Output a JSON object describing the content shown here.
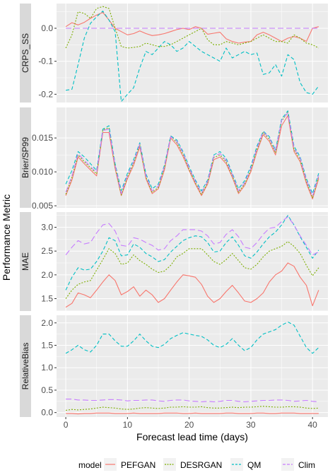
{
  "ylabel": "Performance Metric",
  "xlabel": "Forecast lead time (days)",
  "legend": {
    "title": "model",
    "items": [
      {
        "label": "PEFGAN",
        "color": "#F8766D",
        "dash": "solid"
      },
      {
        "label": "DESRGAN",
        "color": "#7CAE00",
        "dash": "dotted"
      },
      {
        "label": "QM",
        "color": "#00BFC4",
        "dash": "dashed"
      },
      {
        "label": "Clim",
        "color": "#C77CFF",
        "dash": "longdash"
      }
    ]
  },
  "colors": {
    "panel_bg": "#EBEBEB",
    "grid": "#FFFFFF",
    "strip_bg": "#D9D9D9",
    "PEFGAN": "#F8766D",
    "DESRGAN": "#7CAE00",
    "QM": "#00BFC4",
    "Clim": "#C77CFF"
  },
  "chart_data": {
    "type": "line",
    "x": [
      0,
      1,
      2,
      3,
      4,
      5,
      6,
      7,
      8,
      9,
      10,
      11,
      12,
      13,
      14,
      15,
      16,
      17,
      18,
      19,
      20,
      21,
      22,
      23,
      24,
      25,
      26,
      27,
      28,
      29,
      30,
      31,
      32,
      33,
      34,
      35,
      36,
      37,
      38,
      39,
      40,
      41
    ],
    "xticks": [
      0,
      10,
      20,
      30,
      40
    ],
    "xticklabels": [
      "0",
      "10",
      "20",
      "30",
      "40"
    ],
    "xlim": [
      -1.5,
      42.5
    ],
    "grid": true,
    "legend_position": "bottom",
    "panels": [
      {
        "strip": "CRPS_SS",
        "ylim": [
          -0.225,
          0.075
        ],
        "yticks": [
          0.0,
          -0.1,
          -0.2
        ],
        "yticklabels": [
          "0.0",
          "-0.1",
          "-0.2"
        ],
        "series": [
          {
            "name": "PEFGAN",
            "values": [
              0.005,
              0.017,
              0.01,
              0.018,
              0.03,
              0.04,
              0.048,
              0.025,
              0.0,
              -0.01,
              -0.02,
              -0.016,
              -0.008,
              -0.016,
              -0.022,
              -0.02,
              -0.016,
              -0.01,
              -0.004,
              0.0,
              -0.004,
              0.005,
              0.0,
              -0.018,
              -0.015,
              -0.012,
              -0.032,
              -0.04,
              -0.045,
              -0.042,
              -0.04,
              -0.02,
              -0.012,
              -0.02,
              -0.03,
              -0.04,
              -0.03,
              -0.025,
              -0.03,
              -0.04,
              0.0,
              0.005
            ]
          },
          {
            "name": "DESRGAN",
            "values": [
              -0.06,
              -0.02,
              0.05,
              0.045,
              0.03,
              0.06,
              0.066,
              0.06,
              0.0,
              -0.055,
              -0.06,
              -0.058,
              -0.055,
              -0.045,
              -0.05,
              -0.055,
              -0.055,
              -0.05,
              -0.04,
              -0.03,
              -0.02,
              -0.01,
              0.0,
              -0.035,
              -0.05,
              -0.05,
              -0.04,
              -0.045,
              -0.05,
              -0.045,
              -0.04,
              -0.03,
              -0.02,
              -0.03,
              -0.04,
              -0.04,
              -0.045,
              -0.02,
              -0.03,
              -0.045,
              -0.05,
              -0.06
            ]
          },
          {
            "name": "QM",
            "values": [
              -0.188,
              -0.185,
              -0.11,
              -0.03,
              0.015,
              0.035,
              0.052,
              0.025,
              -0.01,
              -0.222,
              -0.2,
              -0.18,
              -0.12,
              -0.07,
              -0.08,
              -0.06,
              -0.04,
              -0.05,
              -0.07,
              -0.06,
              -0.04,
              -0.055,
              -0.07,
              -0.08,
              -0.09,
              -0.1,
              -0.06,
              -0.09,
              -0.08,
              -0.07,
              -0.08,
              -0.075,
              -0.14,
              -0.135,
              -0.11,
              -0.145,
              -0.08,
              -0.095,
              -0.165,
              -0.195,
              -0.2,
              -0.175
            ]
          },
          {
            "name": "Clim",
            "values": [
              0,
              0,
              0,
              0,
              0,
              0,
              0,
              0,
              0,
              0,
              0,
              0,
              0,
              0,
              0,
              0,
              0,
              0,
              0,
              0,
              0,
              0,
              0,
              0,
              0,
              0,
              0,
              0,
              0,
              0,
              0,
              0,
              0,
              0,
              0,
              0,
              0,
              0,
              0,
              0,
              0,
              0
            ]
          }
        ]
      },
      {
        "strip": "Brier/SP99",
        "ylim": [
          0.0047,
          0.0195
        ],
        "yticks": [
          0.005,
          0.01,
          0.015
        ],
        "yticklabels": [
          "0.005",
          "0.010",
          "0.015"
        ],
        "series": [
          {
            "name": "PEFGAN",
            "values": [
              0.0065,
              0.0088,
              0.0122,
              0.0112,
              0.0103,
              0.0094,
              0.0158,
              0.0158,
              0.0105,
              0.0065,
              0.009,
              0.011,
              0.0137,
              0.009,
              0.0068,
              0.0075,
              0.0103,
              0.015,
              0.014,
              0.0123,
              0.0102,
              0.0082,
              0.0065,
              0.0082,
              0.0118,
              0.0122,
              0.0112,
              0.0092,
              0.0068,
              0.008,
              0.01,
              0.013,
              0.0155,
              0.0145,
              0.0125,
              0.0168,
              0.0183,
              0.013,
              0.0115,
              0.0083,
              0.006,
              0.009
            ]
          },
          {
            "name": "DESRGAN",
            "values": [
              0.0067,
              0.0092,
              0.0125,
              0.0115,
              0.0106,
              0.0097,
              0.0162,
              0.0165,
              0.0108,
              0.0066,
              0.0093,
              0.0113,
              0.014,
              0.0092,
              0.007,
              0.0077,
              0.0106,
              0.0153,
              0.0143,
              0.0126,
              0.0104,
              0.0084,
              0.0067,
              0.0084,
              0.0121,
              0.0125,
              0.0115,
              0.0094,
              0.007,
              0.0082,
              0.0103,
              0.0133,
              0.0158,
              0.0148,
              0.0128,
              0.0175,
              0.0188,
              0.0133,
              0.0118,
              0.0086,
              0.0062,
              0.0093
            ]
          },
          {
            "name": "QM",
            "values": [
              0.0082,
              0.0102,
              0.013,
              0.0122,
              0.0112,
              0.0102,
              0.0163,
              0.0168,
              0.0112,
              0.0072,
              0.0098,
              0.0118,
              0.0143,
              0.0097,
              0.0075,
              0.0082,
              0.011,
              0.0153,
              0.0147,
              0.013,
              0.0108,
              0.0088,
              0.0072,
              0.0088,
              0.0125,
              0.013,
              0.012,
              0.0098,
              0.0075,
              0.0087,
              0.0108,
              0.0138,
              0.016,
              0.0152,
              0.0132,
              0.0178,
              0.019,
              0.0138,
              0.0122,
              0.009,
              0.0068,
              0.0098
            ]
          },
          {
            "name": "Clim",
            "values": [
              0.007,
              0.0094,
              0.0127,
              0.0117,
              0.0108,
              0.0099,
              0.0161,
              0.0163,
              0.011,
              0.0068,
              0.0095,
              0.0115,
              0.0141,
              0.0094,
              0.0072,
              0.0079,
              0.0108,
              0.0152,
              0.0145,
              0.0128,
              0.0106,
              0.0086,
              0.0069,
              0.0086,
              0.0123,
              0.0127,
              0.0117,
              0.0096,
              0.0072,
              0.0084,
              0.0105,
              0.0135,
              0.0159,
              0.015,
              0.013,
              0.0176,
              0.0187,
              0.0135,
              0.012,
              0.0088,
              0.0064,
              0.0095
            ]
          }
        ]
      },
      {
        "strip": "MAE",
        "ylim": [
          1.24,
          3.32
        ],
        "yticks": [
          1.5,
          2.0,
          2.5,
          3.0
        ],
        "yticklabels": [
          "1.5",
          "2.0",
          "2.5",
          "3.0"
        ],
        "series": [
          {
            "name": "PEFGAN",
            "values": [
              1.32,
              1.4,
              1.62,
              1.58,
              1.52,
              1.68,
              1.85,
              2.0,
              1.88,
              1.58,
              1.65,
              1.75,
              1.55,
              1.68,
              1.58,
              1.42,
              1.5,
              1.68,
              1.85,
              2.0,
              1.98,
              1.95,
              1.8,
              1.55,
              1.42,
              1.5,
              1.65,
              1.78,
              1.62,
              1.45,
              1.42,
              1.5,
              1.62,
              1.85,
              2.0,
              2.08,
              2.25,
              2.18,
              1.95,
              1.78,
              1.35,
              1.68
            ]
          },
          {
            "name": "DESRGAN",
            "values": [
              1.5,
              1.68,
              1.8,
              1.85,
              1.88,
              2.1,
              2.32,
              2.55,
              2.45,
              2.22,
              2.25,
              2.42,
              2.3,
              2.22,
              2.12,
              2.05,
              2.08,
              2.2,
              2.38,
              2.45,
              2.55,
              2.55,
              2.55,
              2.42,
              2.28,
              2.22,
              2.32,
              2.45,
              2.3,
              2.15,
              2.12,
              2.22,
              2.38,
              2.5,
              2.55,
              2.6,
              2.7,
              2.6,
              2.45,
              2.2,
              1.98,
              2.15
            ]
          },
          {
            "name": "QM",
            "values": [
              1.68,
              1.95,
              2.15,
              2.1,
              2.12,
              2.28,
              2.5,
              2.78,
              2.72,
              2.4,
              2.42,
              2.65,
              2.58,
              2.45,
              2.38,
              2.28,
              2.32,
              2.48,
              2.6,
              2.72,
              2.78,
              2.82,
              2.8,
              2.68,
              2.48,
              2.5,
              2.68,
              2.8,
              2.62,
              2.4,
              2.35,
              2.48,
              2.65,
              2.8,
              2.9,
              3.05,
              3.25,
              3.05,
              2.8,
              2.58,
              2.35,
              2.52
            ]
          },
          {
            "name": "Clim",
            "values": [
              2.42,
              2.58,
              2.72,
              2.65,
              2.68,
              2.88,
              3.05,
              3.08,
              2.92,
              2.62,
              2.6,
              2.78,
              2.75,
              2.68,
              2.62,
              2.52,
              2.55,
              2.72,
              2.82,
              2.95,
              2.95,
              2.95,
              2.92,
              2.82,
              2.65,
              2.68,
              2.85,
              2.95,
              2.8,
              2.58,
              2.55,
              2.68,
              2.85,
              2.98,
              3.0,
              3.12,
              3.22,
              3.05,
              2.82,
              2.62,
              2.42,
              2.48
            ]
          }
        ]
      },
      {
        "strip": "RelativeBias",
        "ylim": [
          -0.1,
          2.17
        ],
        "yticks": [
          0.0,
          0.5,
          1.0,
          1.5,
          2.0
        ],
        "yticklabels": [
          "0.0",
          "0.5",
          "1.0",
          "1.5",
          "2.0"
        ],
        "series": [
          {
            "name": "PEFGAN",
            "values": [
              -0.02,
              -0.02,
              -0.03,
              -0.02,
              -0.02,
              -0.01,
              -0.01,
              -0.01,
              -0.02,
              -0.02,
              -0.02,
              -0.01,
              -0.02,
              -0.02,
              -0.02,
              -0.02,
              -0.01,
              -0.01,
              -0.01,
              -0.02,
              -0.02,
              -0.01,
              -0.02,
              -0.02,
              -0.02,
              -0.02,
              -0.01,
              -0.01,
              -0.02,
              -0.02,
              -0.02,
              -0.01,
              -0.01,
              -0.02,
              -0.02,
              -0.01,
              -0.01,
              -0.01,
              -0.02,
              -0.02,
              -0.02,
              -0.02
            ]
          },
          {
            "name": "DESRGAN",
            "values": [
              0.05,
              0.07,
              0.06,
              0.07,
              0.08,
              0.1,
              0.12,
              0.11,
              0.1,
              0.08,
              0.07,
              0.08,
              0.1,
              0.11,
              0.1,
              0.09,
              0.1,
              0.12,
              0.12,
              0.13,
              0.12,
              0.12,
              0.13,
              0.11,
              0.1,
              0.1,
              0.11,
              0.12,
              0.11,
              0.12,
              0.12,
              0.13,
              0.14,
              0.13,
              0.12,
              0.12,
              0.13,
              0.13,
              0.12,
              0.1,
              0.09,
              0.1
            ]
          },
          {
            "name": "QM",
            "values": [
              1.32,
              1.4,
              1.5,
              1.4,
              1.35,
              1.5,
              1.75,
              1.75,
              1.6,
              1.48,
              1.48,
              1.6,
              1.75,
              1.6,
              1.48,
              1.45,
              1.52,
              1.65,
              1.72,
              1.78,
              1.75,
              1.72,
              1.7,
              1.62,
              1.5,
              1.45,
              1.52,
              1.65,
              1.5,
              1.38,
              1.45,
              1.62,
              1.75,
              1.8,
              1.85,
              1.95,
              2.02,
              1.95,
              1.7,
              1.45,
              1.32,
              1.45
            ]
          },
          {
            "name": "Clim",
            "values": [
              0.3,
              0.3,
              0.28,
              0.28,
              0.27,
              0.27,
              0.28,
              0.29,
              0.29,
              0.28,
              0.26,
              0.27,
              0.27,
              0.28,
              0.28,
              0.26,
              0.25,
              0.27,
              0.28,
              0.28,
              0.26,
              0.25,
              0.24,
              0.25,
              0.24,
              0.25,
              0.27,
              0.27,
              0.25,
              0.24,
              0.25,
              0.26,
              0.27,
              0.27,
              0.28,
              0.28,
              0.27,
              0.25,
              0.26,
              0.27,
              0.25,
              0.24
            ]
          }
        ]
      }
    ]
  }
}
